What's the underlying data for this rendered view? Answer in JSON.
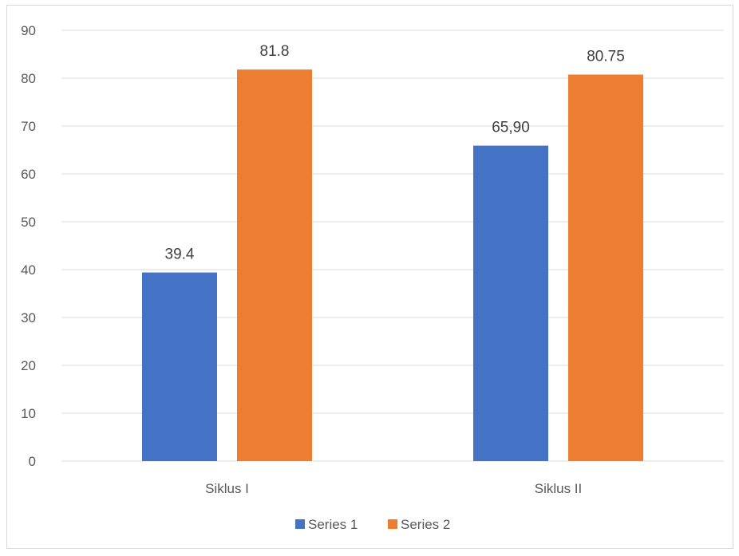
{
  "chart_data": {
    "type": "bar",
    "categories": [
      "Siklus I",
      "Siklus II"
    ],
    "series": [
      {
        "name": "Series 1",
        "values": [
          39.4,
          65.9
        ],
        "labels": [
          "39.4",
          "65,90"
        ],
        "color": "#4472C4"
      },
      {
        "name": "Series 2",
        "values": [
          81.8,
          80.75
        ],
        "labels": [
          "81.8",
          "80.75"
        ],
        "color": "#ED7D31"
      }
    ],
    "title": "",
    "xlabel": "",
    "ylabel": "",
    "ylim": [
      0,
      90
    ],
    "yticks": [
      "0",
      "10",
      "20",
      "30",
      "40",
      "50",
      "60",
      "70",
      "80",
      "90"
    ],
    "grid": true,
    "legend_position": "bottom",
    "gridline_color": "#d9d9d9"
  }
}
